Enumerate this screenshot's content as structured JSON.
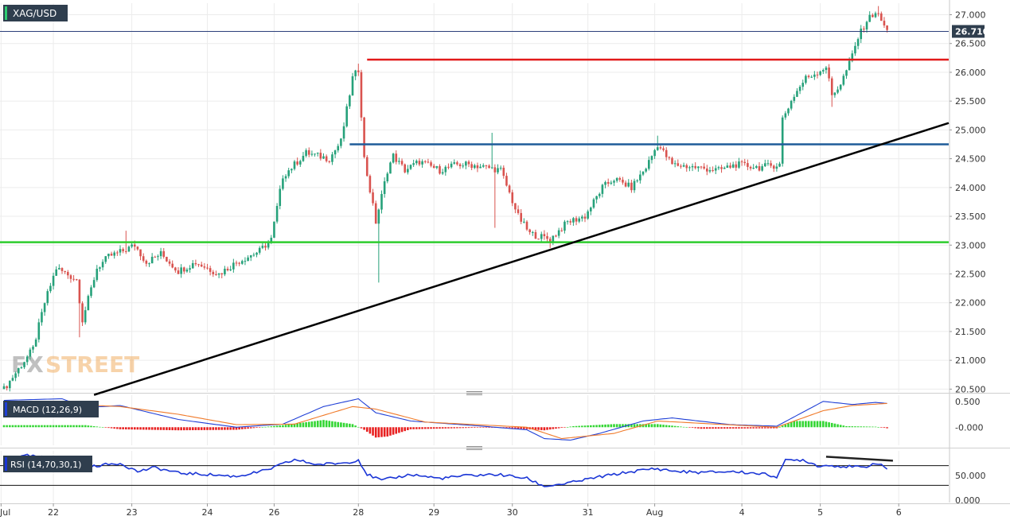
{
  "symbol": "XAG/USD",
  "current_price_label": "26.710",
  "watermark": {
    "prefix": "FX",
    "suffix": "STREET"
  },
  "colors": {
    "bull": "#26a17a",
    "bear": "#d9534f",
    "macd_line": "#1f3fd6",
    "signal_line": "#f07a2a",
    "hist_pos": "#33d633",
    "hist_neg": "#e82020",
    "rsi_line": "#1a35d6",
    "resistance": "#e21a1a",
    "mid_level": "#1f5c99",
    "support": "#2ecc2e",
    "trendline": "#000000",
    "divergence": "#222222",
    "label_bg": "#2f3e4e"
  },
  "chart_data": [
    {
      "type": "candlestick",
      "title": "XAG/USD",
      "ylim": [
        20.45,
        27.2
      ],
      "y_ticks": [
        "27.000",
        "26.500",
        "26.000",
        "25.500",
        "25.000",
        "24.500",
        "24.000",
        "23.500",
        "23.000",
        "22.500",
        "22.000",
        "21.500",
        "21.000",
        "20.500"
      ],
      "x_ticks": [
        "Jul",
        "22",
        "23",
        "24",
        "26",
        "28",
        "29",
        "30",
        "31",
        "Aug",
        "4",
        "5",
        "6"
      ],
      "last_price": 26.71,
      "grid": true,
      "horizontal_levels": [
        {
          "name": "resistance",
          "value": 26.22,
          "from": "28"
        },
        {
          "name": "mid",
          "value": 24.75
        },
        {
          "name": "support",
          "value": 23.05
        }
      ],
      "trendline": {
        "from": 20.4,
        "to": 25.12
      },
      "anchors": [
        {
          "i": 0,
          "c": 20.5
        },
        {
          "i": 10,
          "c": 21.2
        },
        {
          "i": 14,
          "c": 22.0
        },
        {
          "i": 18,
          "c": 22.6
        },
        {
          "i": 25,
          "c": 22.4
        },
        {
          "i": 27,
          "c": 21.7
        },
        {
          "i": 32,
          "c": 22.6
        },
        {
          "i": 36,
          "c": 22.8
        },
        {
          "i": 41,
          "c": 22.9
        },
        {
          "i": 45,
          "c": 23.0
        },
        {
          "i": 49,
          "c": 22.7
        },
        {
          "i": 54,
          "c": 22.85
        },
        {
          "i": 60,
          "c": 22.55
        },
        {
          "i": 66,
          "c": 22.7
        },
        {
          "i": 74,
          "c": 22.5
        },
        {
          "i": 80,
          "c": 22.7
        },
        {
          "i": 88,
          "c": 22.9
        },
        {
          "i": 92,
          "c": 23.1
        },
        {
          "i": 96,
          "c": 24.2
        },
        {
          "i": 104,
          "c": 24.6
        },
        {
          "i": 112,
          "c": 24.5
        },
        {
          "i": 116,
          "c": 24.8
        },
        {
          "i": 120,
          "c": 25.9
        },
        {
          "i": 122,
          "c": 26.05
        },
        {
          "i": 124,
          "c": 24.5
        },
        {
          "i": 128,
          "c": 23.4
        },
        {
          "i": 132,
          "c": 24.3
        },
        {
          "i": 134,
          "c": 24.55
        },
        {
          "i": 138,
          "c": 24.3
        },
        {
          "i": 143,
          "c": 24.45
        },
        {
          "i": 150,
          "c": 24.3
        },
        {
          "i": 156,
          "c": 24.4
        },
        {
          "i": 160,
          "c": 24.4
        },
        {
          "i": 166,
          "c": 24.35
        },
        {
          "i": 171,
          "c": 24.3
        },
        {
          "i": 177,
          "c": 23.5
        },
        {
          "i": 181,
          "c": 23.2
        },
        {
          "i": 188,
          "c": 23.1
        },
        {
          "i": 194,
          "c": 23.4
        },
        {
          "i": 200,
          "c": 23.5
        },
        {
          "i": 206,
          "c": 24.0
        },
        {
          "i": 210,
          "c": 24.15
        },
        {
          "i": 216,
          "c": 24.0
        },
        {
          "i": 221,
          "c": 24.35
        },
        {
          "i": 225,
          "c": 24.75
        },
        {
          "i": 230,
          "c": 24.4
        },
        {
          "i": 238,
          "c": 24.35
        },
        {
          "i": 246,
          "c": 24.3
        },
        {
          "i": 252,
          "c": 24.4
        },
        {
          "i": 260,
          "c": 24.35
        },
        {
          "i": 267,
          "c": 24.4
        },
        {
          "i": 268,
          "c": 25.2
        },
        {
          "i": 272,
          "c": 25.6
        },
        {
          "i": 276,
          "c": 25.9
        },
        {
          "i": 280,
          "c": 26.0
        },
        {
          "i": 283,
          "c": 26.1
        },
        {
          "i": 285,
          "c": 25.6
        },
        {
          "i": 288,
          "c": 25.8
        },
        {
          "i": 291,
          "c": 26.15
        },
        {
          "i": 294,
          "c": 26.6
        },
        {
          "i": 297,
          "c": 26.9
        },
        {
          "i": 300,
          "c": 27.05
        },
        {
          "i": 302,
          "c": 26.9
        },
        {
          "i": 304,
          "c": 26.71
        }
      ],
      "spikes": [
        {
          "i": 26,
          "low": 21.4
        },
        {
          "i": 42,
          "high": 23.25
        },
        {
          "i": 122,
          "high": 26.15
        },
        {
          "i": 129,
          "low": 22.35
        },
        {
          "i": 168,
          "high": 24.95
        },
        {
          "i": 169,
          "low": 23.3
        },
        {
          "i": 188,
          "low": 22.95
        },
        {
          "i": 225,
          "high": 24.9
        },
        {
          "i": 285,
          "low": 25.4
        },
        {
          "i": 301,
          "high": 27.15
        }
      ]
    },
    {
      "type": "line",
      "title": "MACD (12,26,9)",
      "ylim": [
        -0.35,
        0.62
      ],
      "y_ticks": [
        "0.500",
        "-0.000"
      ],
      "series": [
        {
          "name": "macd",
          "anchors": [
            [
              0,
              0.52
            ],
            [
              20,
              0.55
            ],
            [
              28,
              0.38
            ],
            [
              40,
              0.42
            ],
            [
              60,
              0.15
            ],
            [
              80,
              0.0
            ],
            [
              96,
              0.06
            ],
            [
              110,
              0.4
            ],
            [
              122,
              0.55
            ],
            [
              128,
              0.28
            ],
            [
              140,
              0.12
            ],
            [
              160,
              0.04
            ],
            [
              180,
              -0.05
            ],
            [
              186,
              -0.22
            ],
            [
              195,
              -0.25
            ],
            [
              205,
              -0.12
            ],
            [
              220,
              0.12
            ],
            [
              230,
              0.18
            ],
            [
              250,
              0.05
            ],
            [
              266,
              0.02
            ],
            [
              272,
              0.2
            ],
            [
              282,
              0.5
            ],
            [
              292,
              0.44
            ],
            [
              300,
              0.48
            ],
            [
              304,
              0.46
            ]
          ]
        },
        {
          "name": "signal",
          "anchors": [
            [
              0,
              0.35
            ],
            [
              20,
              0.45
            ],
            [
              40,
              0.4
            ],
            [
              60,
              0.25
            ],
            [
              80,
              0.05
            ],
            [
              100,
              0.06
            ],
            [
              120,
              0.4
            ],
            [
              128,
              0.35
            ],
            [
              145,
              0.1
            ],
            [
              180,
              0.0
            ],
            [
              192,
              -0.22
            ],
            [
              210,
              -0.12
            ],
            [
              225,
              0.12
            ],
            [
              245,
              0.06
            ],
            [
              266,
              0.0
            ],
            [
              282,
              0.32
            ],
            [
              292,
              0.42
            ],
            [
              304,
              0.46
            ]
          ]
        }
      ],
      "histogram": [
        {
          "i": 28,
          "v": 0.04
        },
        {
          "i": 40,
          "v": -0.04
        },
        {
          "i": 60,
          "v": -0.06
        },
        {
          "i": 80,
          "v": -0.05
        },
        {
          "i": 96,
          "v": 0.04
        },
        {
          "i": 110,
          "v": 0.14
        },
        {
          "i": 120,
          "v": 0.06
        },
        {
          "i": 124,
          "v": -0.05
        },
        {
          "i": 128,
          "v": -0.2
        },
        {
          "i": 132,
          "v": -0.18
        },
        {
          "i": 140,
          "v": -0.04
        },
        {
          "i": 170,
          "v": 0.0
        },
        {
          "i": 186,
          "v": -0.06
        },
        {
          "i": 196,
          "v": 0.02
        },
        {
          "i": 210,
          "v": 0.06
        },
        {
          "i": 225,
          "v": 0.06
        },
        {
          "i": 240,
          "v": -0.03
        },
        {
          "i": 266,
          "v": -0.02
        },
        {
          "i": 272,
          "v": 0.12
        },
        {
          "i": 282,
          "v": 0.12
        },
        {
          "i": 290,
          "v": 0.02
        },
        {
          "i": 300,
          "v": 0.01
        },
        {
          "i": 304,
          "v": -0.02
        }
      ]
    },
    {
      "type": "line",
      "title": "RSI (14,70,30,1)",
      "ylim": [
        -5,
        100
      ],
      "y_ticks": [
        "50.000",
        "0.000"
      ],
      "levels": [
        70,
        30
      ],
      "series": [
        {
          "name": "rsi",
          "anchors": [
            [
              0,
              82
            ],
            [
              8,
              90
            ],
            [
              14,
              86
            ],
            [
              20,
              78
            ],
            [
              26,
              62
            ],
            [
              32,
              70
            ],
            [
              40,
              75
            ],
            [
              46,
              58
            ],
            [
              52,
              66
            ],
            [
              60,
              55
            ],
            [
              70,
              52
            ],
            [
              80,
              48
            ],
            [
              90,
              60
            ],
            [
              100,
              82
            ],
            [
              108,
              72
            ],
            [
              118,
              76
            ],
            [
              122,
              82
            ],
            [
              125,
              52
            ],
            [
              130,
              40
            ],
            [
              140,
              52
            ],
            [
              150,
              44
            ],
            [
              160,
              50
            ],
            [
              170,
              52
            ],
            [
              180,
              44
            ],
            [
              186,
              28
            ],
            [
              194,
              34
            ],
            [
              204,
              46
            ],
            [
              214,
              56
            ],
            [
              224,
              64
            ],
            [
              232,
              58
            ],
            [
              240,
              56
            ],
            [
              250,
              58
            ],
            [
              260,
              54
            ],
            [
              266,
              48
            ],
            [
              269,
              80
            ],
            [
              275,
              82
            ],
            [
              280,
              70
            ],
            [
              286,
              70
            ],
            [
              290,
              68
            ],
            [
              296,
              66
            ],
            [
              300,
              76
            ],
            [
              304,
              64
            ]
          ]
        }
      ],
      "divergence": {
        "from": [
          283,
          88
        ],
        "to": [
          306,
          80
        ]
      }
    }
  ]
}
